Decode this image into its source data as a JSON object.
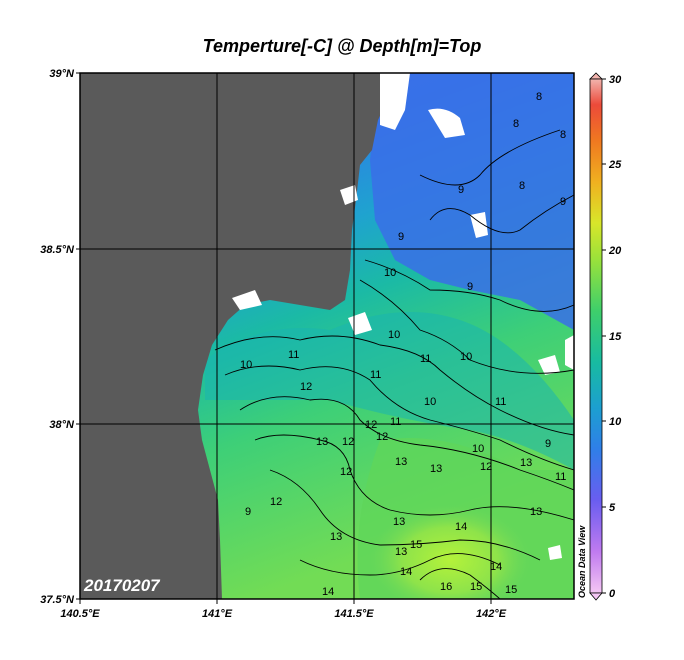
{
  "map": {
    "title": "Temperture[-C] @ Depth[m]=Top",
    "date_stamp": "20170207",
    "watermark": "Ocean Data View",
    "lat_labels": [
      "39°N",
      "38.5°N",
      "38°N",
      "37.5°N"
    ],
    "lon_labels": [
      "140.5°E",
      "141°E",
      "141.5°E",
      "142°E"
    ],
    "colorbar": {
      "ticks": [
        "30",
        "25",
        "20",
        "15",
        "10",
        "5",
        "0"
      ],
      "min": 0,
      "max": 30
    },
    "contour_labels": [
      "8",
      "8",
      "8",
      "8",
      "9",
      "9",
      "9",
      "10",
      "10",
      "10",
      "10",
      "10",
      "11",
      "11",
      "11",
      "11",
      "12",
      "12",
      "12",
      "12",
      "12",
      "12",
      "13",
      "13",
      "13",
      "13",
      "13",
      "13",
      "13",
      "13",
      "14",
      "14",
      "14",
      "14",
      "15",
      "15",
      "15",
      "16",
      "9",
      "9",
      "10",
      "11",
      "12",
      "9",
      "11"
    ],
    "colors": {
      "land": "#5a5a5a",
      "cold": "#3a7ee6",
      "mid": "#17b9a8",
      "warm": "#5fd65a",
      "hot": "#a6ef3a"
    }
  }
}
